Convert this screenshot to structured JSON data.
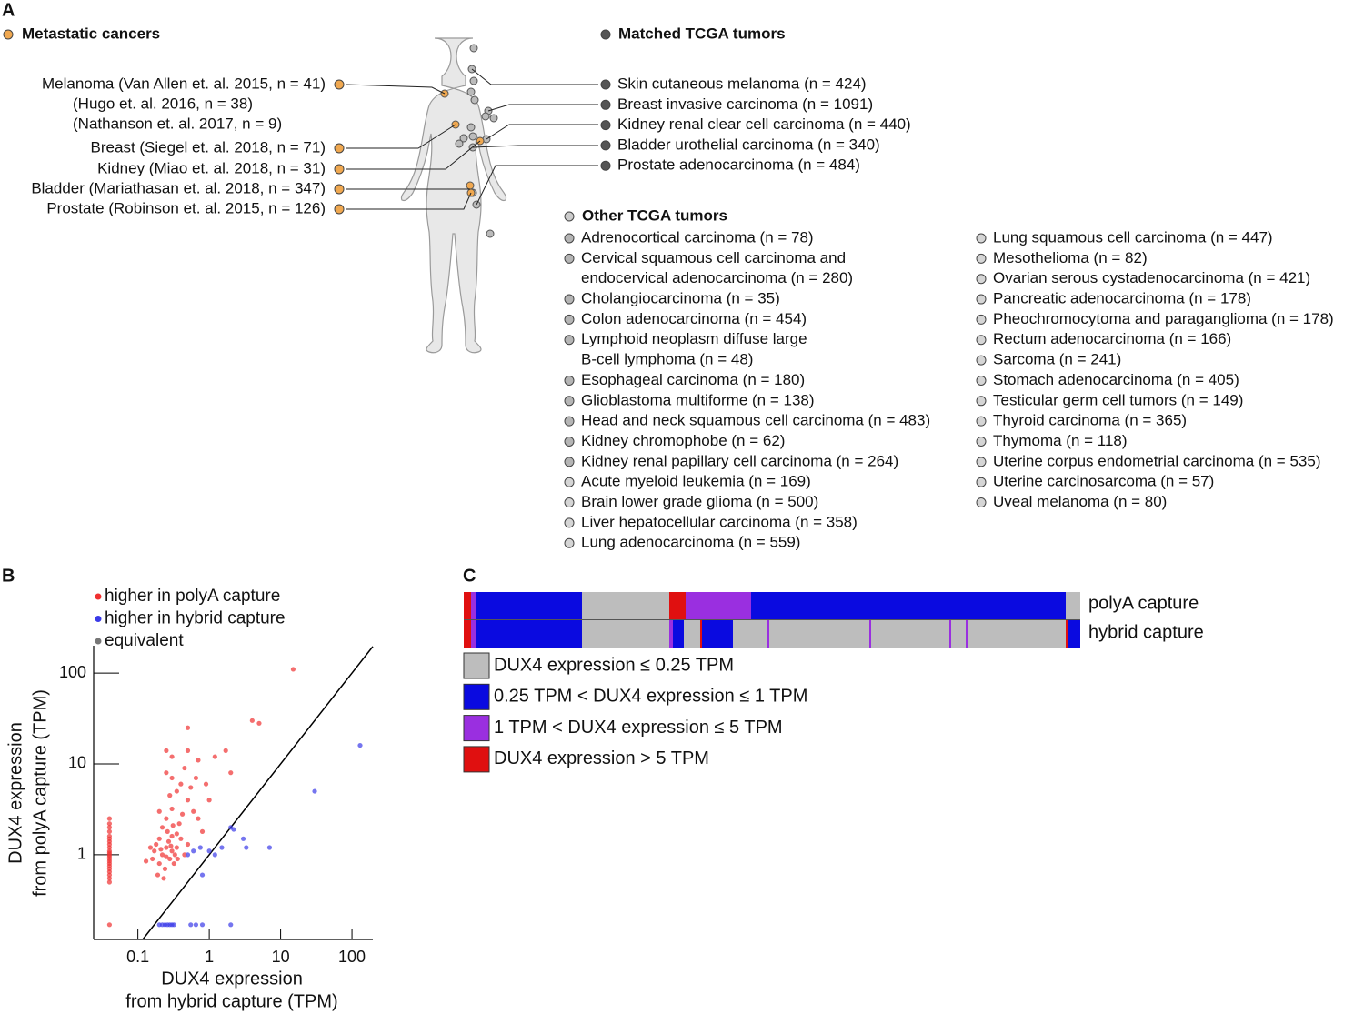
{
  "panel_a": {
    "label": "A",
    "metastatic": {
      "title": "Metastatic cancers",
      "items": [
        [
          "Melanoma (Van Allen et. al. 2015, n = 41)",
          "(Hugo et. al. 2016, n = 38)",
          "(Nathanson et. al. 2017, n = 9)"
        ],
        [
          "Breast (Siegel et. al. 2018, n = 71)"
        ],
        [
          "Kidney (Miao et. al. 2018, n = 31)"
        ],
        [
          "Bladder (Mariathasan et. al. 2018, n = 347)"
        ],
        [
          "Prostate (Robinson et. al. 2015, n = 126)"
        ]
      ]
    },
    "matched": {
      "title": "Matched TCGA tumors",
      "items": [
        "Skin cutaneous melanoma (n = 424)",
        "Breast invasive carcinoma (n = 1091)",
        "Kidney renal clear cell carcinoma (n = 440)",
        "Bladder urothelial carcinoma (n = 340)",
        "Prostate adenocarcinoma (n = 484)"
      ]
    },
    "other": {
      "title": "Other TCGA tumors",
      "columns": [
        [
          [
            "Adrenocortical carcinoma (n = 78)"
          ],
          [
            "Cervical squamous cell carcinoma and",
            "endocervical adenocarcinoma (n = 280)"
          ],
          [
            "Cholangiocarcinoma (n = 35)"
          ],
          [
            "Colon adenocarcinoma (n = 454)"
          ],
          [
            "Lymphoid neoplasm diffuse large",
            "B-cell lymphoma (n = 48)"
          ],
          [
            "Esophageal carcinoma (n = 180)"
          ],
          [
            "Glioblastoma multiforme (n = 138)"
          ],
          [
            "Head and neck squamous cell carcinoma (n = 483)"
          ],
          [
            "Kidney chromophobe (n = 62)"
          ],
          [
            "Kidney renal papillary cell carcinoma (n = 264)"
          ],
          [
            "Acute myeloid leukemia (n = 169)"
          ],
          [
            "Brain lower grade glioma (n = 500)"
          ],
          [
            "Liver hepatocellular carcinoma (n = 358)"
          ],
          [
            "Lung adenocarcinoma (n = 559)"
          ]
        ],
        [
          [
            "Lung squamous cell carcinoma (n = 447)"
          ],
          [
            "Mesothelioma (n = 82)"
          ],
          [
            "Ovarian serous cystadenocarcinoma (n = 421)"
          ],
          [
            "Pancreatic adenocarcinoma (n = 178)"
          ],
          [
            "Pheochromocytoma and paraganglioma (n = 178)"
          ],
          [
            "Rectum adenocarcinoma (n = 166)"
          ],
          [
            "Sarcoma (n = 241)"
          ],
          [
            "Stomach adenocarcinoma (n = 405)"
          ],
          [
            "Testicular germ cell tumors (n = 149)"
          ],
          [
            "Thyroid carcinoma (n = 365)"
          ],
          [
            "Thymoma (n = 118)"
          ],
          [
            "Uterine corpus endometrial carcinoma (n = 535)"
          ],
          [
            "Uterine carcinosarcoma (n = 57)"
          ],
          [
            "Uveal melanoma (n = 80)"
          ]
        ]
      ]
    }
  },
  "chart_data": [
    {
      "type": "scatter",
      "label": "B",
      "xlabel": [
        "DUX4 expression",
        "from hybrid capture (TPM)"
      ],
      "ylabel": [
        "DUX4 expression",
        "from polyA capture (TPM)"
      ],
      "log_x": true,
      "log_y": true,
      "xlim": [
        0.024,
        196
      ],
      "ylim": [
        0.117,
        200
      ],
      "xticks": [
        0.1,
        1,
        10,
        100
      ],
      "yticks": [
        1,
        10,
        100
      ],
      "series": [
        {
          "name": "higher in polyA capture",
          "color": "#f03030",
          "x": [
            0.04,
            0.04,
            0.04,
            0.04,
            0.04,
            0.04,
            0.04,
            0.04,
            0.04,
            0.04,
            0.04,
            0.04,
            0.04,
            0.04,
            0.04,
            0.04,
            0.04,
            0.04,
            0.04,
            0.04,
            0.04,
            0.04,
            0.04,
            0.2,
            0.22,
            0.25,
            0.28,
            0.3,
            0.18,
            0.2,
            0.24,
            0.27,
            0.32,
            0.35,
            0.3,
            0.22,
            0.26,
            0.4,
            0.38,
            0.45,
            0.5,
            0.19,
            0.23,
            0.16,
            0.17,
            0.33,
            0.29,
            0.21,
            0.25,
            0.36,
            0.42,
            0.3,
            0.25,
            0.2,
            0.5,
            0.6,
            0.7,
            0.8,
            0.28,
            0.35,
            0.4,
            0.3,
            0.25,
            0.45,
            0.55,
            0.65,
            0.9,
            1,
            0.3,
            0.5,
            0.7,
            0.25,
            0.5,
            1.2,
            1.7,
            4,
            5,
            15,
            2,
            0.35,
            0.31,
            0.13,
            0.15
          ],
          "y": [
            0.5,
            0.55,
            0.6,
            0.65,
            0.7,
            0.75,
            0.8,
            0.85,
            0.9,
            0.95,
            1,
            1.05,
            1.1,
            1.2,
            1.3,
            1.4,
            1.5,
            1.6,
            1.8,
            2,
            2.2,
            2.5,
            0.17,
            0.8,
            1,
            1.2,
            0.9,
            1.1,
            1.3,
            1.5,
            0.7,
            1.4,
            0.8,
            1.2,
            1.6,
            2,
            1.8,
            1.5,
            2.2,
            1,
            1.3,
            0.6,
            0.55,
            0.9,
            1.1,
            1,
            1.25,
            1.15,
            0.95,
            0.9,
            2.8,
            3.2,
            2.5,
            3,
            4,
            3,
            2.5,
            1.8,
            4.5,
            5,
            6,
            7,
            8,
            9,
            5.5,
            7,
            6,
            4,
            12,
            14,
            11,
            14,
            25,
            12,
            14,
            30,
            28,
            110,
            8,
            1.7,
            2.1,
            0.85,
            1.2
          ]
        },
        {
          "name": "higher in hybrid capture",
          "color": "#3a3ae8",
          "x": [
            0.2,
            0.22,
            0.24,
            0.26,
            0.28,
            0.3,
            0.32,
            0.55,
            0.65,
            0.8,
            2,
            0.5,
            0.6,
            0.75,
            1,
            1.2,
            1.5,
            2,
            2.2,
            3,
            3.3,
            0.8,
            7,
            30,
            130
          ],
          "y": [
            0.17,
            0.17,
            0.17,
            0.17,
            0.17,
            0.17,
            0.17,
            0.17,
            0.17,
            0.17,
            0.17,
            1,
            1.1,
            1.2,
            1.1,
            1,
            1.2,
            2,
            1.9,
            1.5,
            1.2,
            0.6,
            1.2,
            5,
            16
          ]
        },
        {
          "name": "equivalent",
          "color": "#777777",
          "x": [],
          "y": []
        }
      ]
    },
    {
      "type": "heatmap",
      "label": "C",
      "levels": [
        {
          "label": "DUX4 expression ≤ 0.25 TPM",
          "color": "#bdbdbd"
        },
        {
          "label": "0.25 TPM < DUX4 expression ≤  1 TPM",
          "color": "#0a0ae0"
        },
        {
          "label": "1 TPM < DUX4 expression ≤  5 TPM",
          "color": "#9a2fe0"
        },
        {
          "label": "DUX4 expression >  5 TPM",
          "color": "#e01010"
        }
      ],
      "rows": [
        {
          "name": "polyA capture",
          "runs": [
            {
              "level": 3,
              "count": 4
            },
            {
              "level": 2,
              "count": 3
            },
            {
              "level": 1,
              "count": 58
            },
            {
              "level": 0,
              "count": 48
            },
            {
              "level": 3,
              "count": 9
            },
            {
              "level": 2,
              "count": 36
            },
            {
              "level": 1,
              "count": 173
            },
            {
              "level": 0,
              "count": 8
            }
          ]
        },
        {
          "name": "hybrid capture",
          "runs": [
            {
              "level": 3,
              "count": 4
            },
            {
              "level": 2,
              "count": 3
            },
            {
              "level": 1,
              "count": 58
            },
            {
              "level": 0,
              "count": 48
            },
            {
              "level": 2,
              "count": 2
            },
            {
              "level": 1,
              "count": 6
            },
            {
              "level": 0,
              "count": 9
            },
            {
              "level": 3,
              "count": 1
            },
            {
              "level": 1,
              "count": 17
            },
            {
              "level": 0,
              "count": 19
            },
            {
              "level": 2,
              "count": 1
            },
            {
              "level": 0,
              "count": 55
            },
            {
              "level": 2,
              "count": 1
            },
            {
              "level": 0,
              "count": 43
            },
            {
              "level": 2,
              "count": 1
            },
            {
              "level": 0,
              "count": 8
            },
            {
              "level": 2,
              "count": 1
            },
            {
              "level": 0,
              "count": 54
            },
            {
              "level": 3,
              "count": 1
            },
            {
              "level": 1,
              "count": 7
            }
          ]
        }
      ]
    }
  ]
}
